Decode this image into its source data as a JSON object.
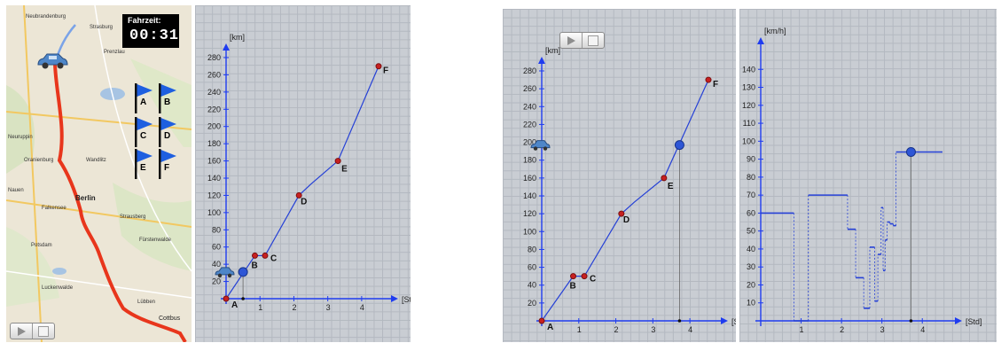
{
  "colors": {
    "route": "#e8361c",
    "line": "#2540d6",
    "axis": "#1f3cf0",
    "point": "#c82020",
    "bg": "#c9cdd3"
  },
  "map": {
    "timer_label": "Fahrzeit:",
    "timer_value": "00:31",
    "places": [
      "Neubrandenburg",
      "Strasburg",
      "Prenzlau",
      "Neuruppin",
      "Oranienburg",
      "Wandlitz",
      "Nauen",
      "Berlin",
      "Falkensee",
      "Potsdam",
      "Strausberg",
      "Fürstenwalde",
      "Cottbus",
      "Lübben",
      "Luckenwalde"
    ],
    "flags": [
      "A",
      "B",
      "C",
      "D",
      "E",
      "F"
    ]
  },
  "icons": {
    "car": "car-icon",
    "flag": "flag-icon",
    "play": "play-icon",
    "stop": "stop-icon"
  },
  "chart_data": [
    {
      "type": "line",
      "xlabel": "[Std]",
      "ylabel": "[km]",
      "xlim": [
        0,
        4.5
      ],
      "ylim": [
        0,
        280
      ],
      "xticks": [
        "1",
        "2",
        "3",
        "4"
      ],
      "yticks": [
        "20",
        "40",
        "60",
        "80",
        "100",
        "120",
        "140",
        "160",
        "180",
        "200",
        "220",
        "240",
        "260",
        "280"
      ],
      "series": [
        {
          "x": [
            0,
            0.85,
            1.15,
            2.15,
            2.5,
            3.3,
            4.5
          ],
          "y": [
            0,
            50,
            50,
            120,
            133,
            160,
            270
          ]
        }
      ],
      "points": [
        {
          "label": "A",
          "x": 0,
          "y": 0
        },
        {
          "label": "B",
          "x": 0.85,
          "y": 50
        },
        {
          "label": "C",
          "x": 1.15,
          "y": 50
        },
        {
          "label": "D",
          "x": 2.15,
          "y": 120
        },
        {
          "label": "E",
          "x": 3.3,
          "y": 160
        },
        {
          "label": "F",
          "x": 4.5,
          "y": 270
        }
      ],
      "marker": {
        "x": 0.5,
        "y": 31
      }
    },
    {
      "type": "line",
      "xlabel": "[Std]",
      "ylabel": "[km]",
      "xlim": [
        0,
        4.5
      ],
      "ylim": [
        0,
        280
      ],
      "xticks": [
        "1",
        "2",
        "3",
        "4"
      ],
      "yticks": [
        "20",
        "40",
        "60",
        "80",
        "100",
        "120",
        "140",
        "160",
        "180",
        "200",
        "220",
        "240",
        "260",
        "280"
      ],
      "series": [
        {
          "x": [
            0,
            0.85,
            1.15,
            2.15,
            2.5,
            3.3,
            4.5
          ],
          "y": [
            0,
            50,
            50,
            120,
            133,
            160,
            270
          ]
        }
      ],
      "points": [
        {
          "label": "A",
          "x": 0,
          "y": 0
        },
        {
          "label": "B",
          "x": 0.85,
          "y": 50
        },
        {
          "label": "C",
          "x": 1.15,
          "y": 50
        },
        {
          "label": "D",
          "x": 2.15,
          "y": 120
        },
        {
          "label": "E",
          "x": 3.3,
          "y": 160
        },
        {
          "label": "F",
          "x": 4.5,
          "y": 270
        }
      ],
      "marker": {
        "x": 3.72,
        "y": 197
      }
    },
    {
      "type": "line",
      "xlabel": "[Std]",
      "ylabel": "[km/h]",
      "xlim": [
        0,
        4.5
      ],
      "ylim": [
        0,
        150
      ],
      "xticks": [
        "1",
        "2",
        "3",
        "4"
      ],
      "yticks": [
        "10",
        "20",
        "30",
        "40",
        "50",
        "60",
        "70",
        "80",
        "90",
        "100",
        "110",
        "120",
        "130",
        "140"
      ],
      "segments": [
        [
          0,
          0.82,
          60
        ],
        [
          0.82,
          1.18,
          0
        ],
        [
          1.18,
          2.15,
          70
        ],
        [
          2.15,
          2.35,
          51
        ],
        [
          2.35,
          2.55,
          24
        ],
        [
          2.55,
          2.7,
          7
        ],
        [
          2.7,
          2.82,
          41
        ],
        [
          2.82,
          2.9,
          11
        ],
        [
          2.9,
          2.98,
          37
        ],
        [
          2.98,
          3.03,
          63
        ],
        [
          3.03,
          3.08,
          28
        ],
        [
          3.08,
          3.13,
          45
        ],
        [
          3.13,
          3.2,
          55
        ],
        [
          3.2,
          3.28,
          54
        ],
        [
          3.28,
          3.35,
          53
        ],
        [
          3.35,
          4.5,
          94
        ]
      ],
      "marker": {
        "x": 3.72,
        "y": 94
      }
    }
  ]
}
